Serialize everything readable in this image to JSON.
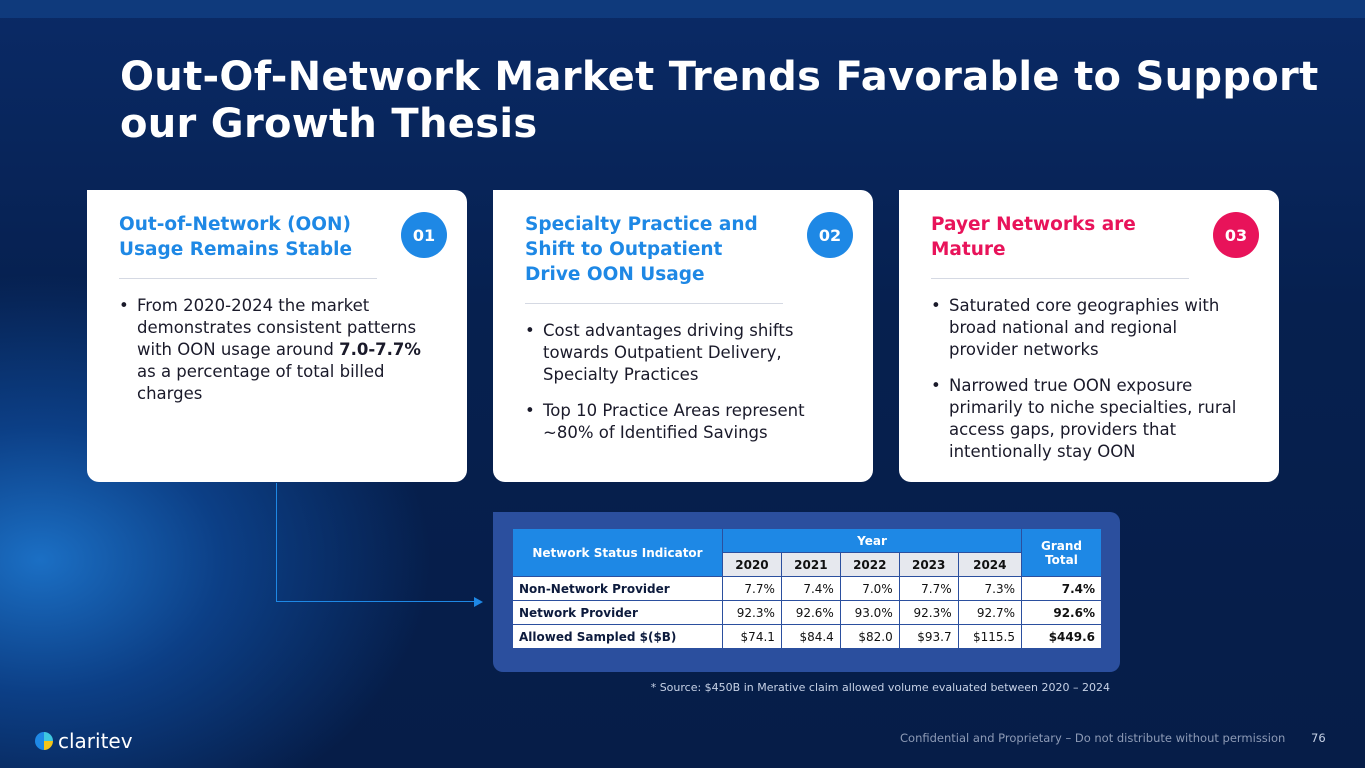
{
  "title": "Out-Of-Network Market Trends Favorable to Support our Growth Thesis",
  "cards": [
    {
      "heading": "Out-of-Network (OON) Usage Remains Stable",
      "badge": "01",
      "color": "#1e88e5",
      "bullets": [
        {
          "pre": "From 2020-2024 the market demonstrates consistent patterns with OON usage around ",
          "bold": "7.0-7.7%",
          "post": " as a percentage of total billed charges"
        }
      ]
    },
    {
      "heading": "Specialty Practice and Shift to Outpatient Drive OON Usage",
      "badge": "02",
      "color": "#1e88e5",
      "bullets": [
        "Cost advantages driving shifts towards Outpatient Delivery, Specialty Practices",
        "Top 10 Practice Areas represent ~80% of Identified Savings"
      ]
    },
    {
      "heading": "Payer Networks are Mature",
      "badge": "03",
      "color": "#e8135a",
      "bullets": [
        "Saturated core geographies with broad national and regional provider networks",
        "Narrowed true OON exposure primarily to niche specialties, rural access gaps, providers that intentionally stay OON"
      ]
    }
  ],
  "table": {
    "header": "Network Status Indicator",
    "year": "Year",
    "grand": "Grand Total",
    "years": [
      "2020",
      "2021",
      "2022",
      "2023",
      "2024"
    ],
    "rows": [
      {
        "label": "Non-Network Provider",
        "values": [
          "7.7%",
          "7.4%",
          "7.0%",
          "7.7%",
          "7.3%"
        ],
        "total": "7.4%"
      },
      {
        "label": "Network Provider",
        "values": [
          "92.3%",
          "92.6%",
          "93.0%",
          "92.3%",
          "92.7%"
        ],
        "total": "92.6%"
      },
      {
        "label": "Allowed Sampled $($B)",
        "values": [
          "$74.1",
          "$84.4",
          "$82.0",
          "$93.7",
          "$115.5"
        ],
        "total": "$449.6"
      }
    ]
  },
  "source": "* Source: $450B in Merative claim allowed volume evaluated between 2020 – 2024",
  "footer": {
    "logo": "claritev",
    "confidential": "Confidential and Proprietary – Do not distribute without permission",
    "page": "76"
  }
}
